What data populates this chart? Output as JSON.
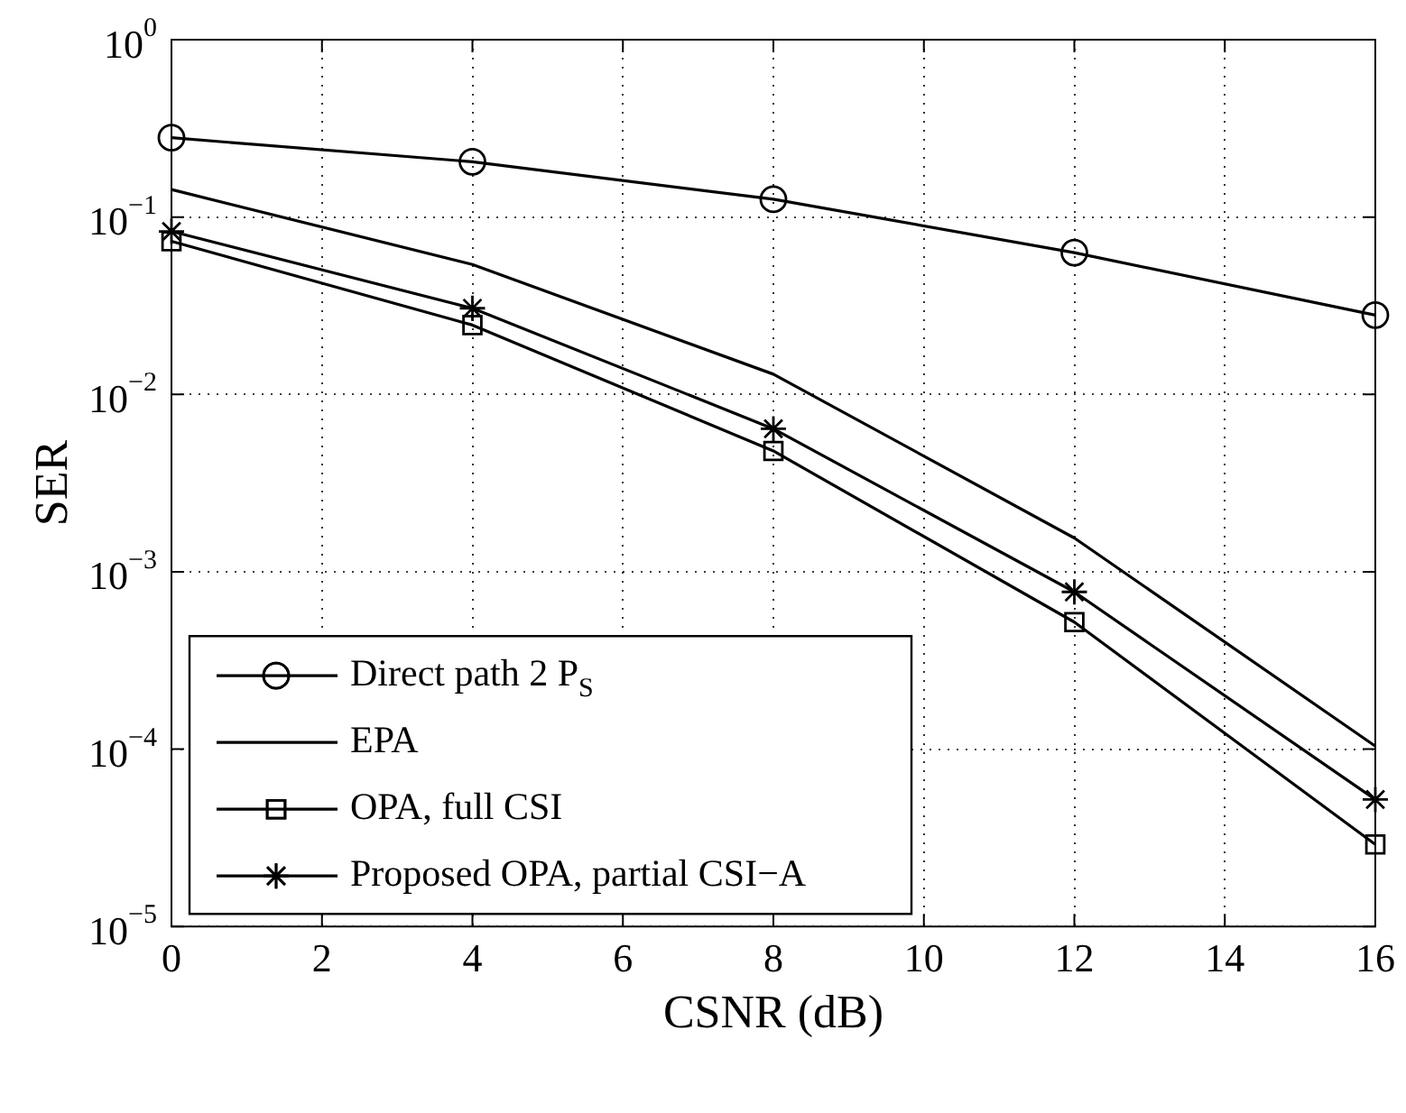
{
  "chart_data": {
    "type": "line",
    "xlabel": "CSNR (dB)",
    "ylabel": "SER",
    "x": [
      0,
      4,
      8,
      12,
      16
    ],
    "log": "y",
    "grid": true,
    "legend": "bottom left",
    "line_style": "solid",
    "xlim": [
      0,
      16
    ],
    "xticks": [
      0,
      2,
      4,
      6,
      8,
      10,
      12,
      14,
      16
    ],
    "ylim": [
      1e-05,
      1
    ],
    "yticks": [
      {
        "value": 1e-05,
        "label": "10$^{−5}$"
      },
      {
        "value": 0.0001,
        "label": "10$^{−4}$"
      },
      {
        "value": 0.001,
        "label": "10$^{−3}$"
      },
      {
        "value": 0.01,
        "label": "10$^{−2}$"
      },
      {
        "value": 0.1,
        "label": "10$^{−1}$"
      },
      {
        "value": 1,
        "label": "10$^{0}$"
      }
    ],
    "series": [
      {
        "name": "Direct path 2 P$_{S}$",
        "color": "#000000",
        "marker": "circle",
        "values": [
          0.28,
          0.205,
          0.126,
          0.063,
          0.028
        ]
      },
      {
        "name": "EPA",
        "color": "#000000",
        "marker": "none",
        "values": [
          0.143,
          0.054,
          0.013,
          0.00155,
          0.000104
        ]
      },
      {
        "name": "OPA, full CSI",
        "color": "#000000",
        "marker": "square",
        "values": [
          0.073,
          0.0246,
          0.0048,
          0.00052,
          2.9e-05
        ]
      },
      {
        "name": "Proposed OPA, partial CSI−A",
        "color": "#000000",
        "marker": "cross",
        "values": [
          0.083,
          0.0306,
          0.0064,
          0.00077,
          5.2e-05
        ]
      }
    ]
  }
}
